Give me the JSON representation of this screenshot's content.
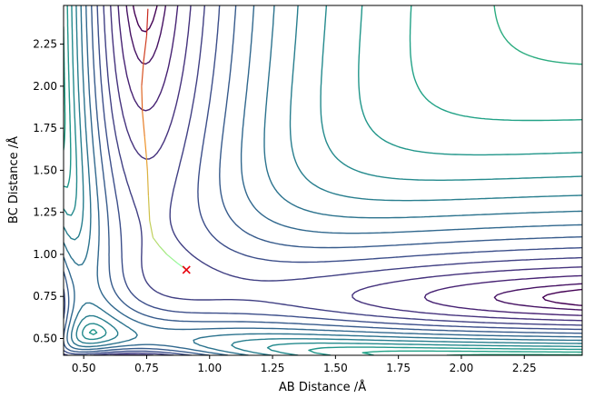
{
  "chart_data": {
    "type": "contour",
    "xlabel": "AB Distance /Å",
    "ylabel": "BC Distance /Å",
    "xlim": [
      0.42,
      2.48
    ],
    "ylim": [
      0.4,
      2.48
    ],
    "x_ticks": [
      "0.50",
      "0.75",
      "1.00",
      "1.25",
      "1.50",
      "1.75",
      "2.00",
      "2.25"
    ],
    "x_tick_values": [
      0.5,
      0.75,
      1.0,
      1.25,
      1.5,
      1.75,
      2.0,
      2.25
    ],
    "y_ticks": [
      "0.50",
      "0.75",
      "1.00",
      "1.25",
      "1.50",
      "1.75",
      "2.00",
      "2.25"
    ],
    "y_tick_values": [
      0.5,
      0.75,
      1.0,
      1.25,
      1.5,
      1.75,
      2.0,
      2.25
    ],
    "colormap": "viridis",
    "contour_levels": 22,
    "grid": false,
    "transition_state_marker": {
      "symbol": "x",
      "color": "#e8000b",
      "x": 0.908,
      "y": 0.908
    },
    "trajectory": {
      "color": "colored by time (green → orange → red)",
      "points": [
        [
          0.908,
          0.908
        ],
        [
          0.87,
          0.95
        ],
        [
          0.83,
          1.0
        ],
        [
          0.8,
          1.05
        ],
        [
          0.775,
          1.1
        ],
        [
          0.762,
          1.2
        ],
        [
          0.757,
          1.35
        ],
        [
          0.753,
          1.5
        ],
        [
          0.748,
          1.6
        ],
        [
          0.742,
          1.7
        ],
        [
          0.733,
          1.85
        ],
        [
          0.73,
          2.0
        ],
        [
          0.738,
          2.15
        ],
        [
          0.75,
          2.3
        ],
        [
          0.755,
          2.46
        ]
      ]
    }
  },
  "axes": {
    "xlabel": "AB Distance /Å",
    "ylabel": "BC Distance /Å"
  }
}
